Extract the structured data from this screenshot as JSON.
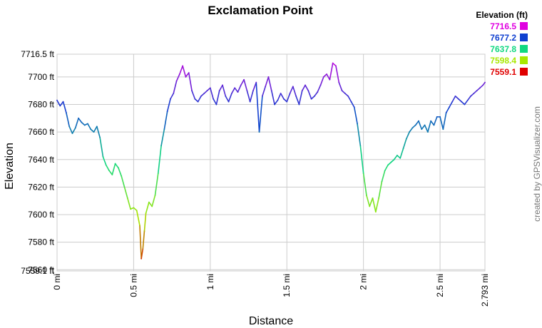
{
  "chart_data": {
    "type": "line",
    "title": "Exclamation Point",
    "xlabel": "Distance",
    "ylabel": "Elevation",
    "xlim": [
      0,
      2.793
    ],
    "ylim": [
      7559.1,
      7716.5
    ],
    "x_ticks": [
      "0 mi",
      "0.5 mi",
      "1 mi",
      "1.5 mi",
      "2 mi",
      "2.5 mi",
      "2.793 mi"
    ],
    "x_tick_values": [
      0,
      0.5,
      1,
      1.5,
      2,
      2.5,
      2.793
    ],
    "y_ticks": [
      "7559.1 ft",
      "7560 ft",
      "7580 ft",
      "7600 ft",
      "7620 ft",
      "7640 ft",
      "7660 ft",
      "7680 ft",
      "7700 ft",
      "7716.5 ft"
    ],
    "y_tick_values": [
      7559.1,
      7560,
      7580,
      7600,
      7620,
      7640,
      7660,
      7680,
      7700,
      7716.5
    ],
    "grid": true,
    "legend": {
      "title": "Elevation (ft)",
      "placement": "top-right",
      "entries": [
        {
          "label": "7716.5",
          "color": "#e000e0"
        },
        {
          "label": "7677.2",
          "color": "#1040d0"
        },
        {
          "label": "7637.8",
          "color": "#10d880"
        },
        {
          "label": "7598.4",
          "color": "#a8e800"
        },
        {
          "label": "7559.1",
          "color": "#e00000"
        }
      ]
    },
    "color_scale": [
      "#e00000",
      "#a8e800",
      "#10d880",
      "#1040d0",
      "#e000e0"
    ],
    "series": [
      {
        "x": [
          0,
          0.02,
          0.04,
          0.06,
          0.08,
          0.1,
          0.12,
          0.14,
          0.16,
          0.18,
          0.2,
          0.22,
          0.24,
          0.26,
          0.28,
          0.3,
          0.32,
          0.34,
          0.36,
          0.38,
          0.4,
          0.42,
          0.44,
          0.46,
          0.48,
          0.5,
          0.52,
          0.54,
          0.55,
          0.56,
          0.57,
          0.58,
          0.6,
          0.62,
          0.64,
          0.66,
          0.68,
          0.7,
          0.72,
          0.74,
          0.76,
          0.78,
          0.8,
          0.82,
          0.84,
          0.86,
          0.88,
          0.9,
          0.92,
          0.94,
          0.96,
          0.98,
          1.0,
          1.02,
          1.04,
          1.06,
          1.08,
          1.1,
          1.12,
          1.14,
          1.16,
          1.18,
          1.2,
          1.22,
          1.24,
          1.26,
          1.28,
          1.3,
          1.32,
          1.34,
          1.36,
          1.38,
          1.4,
          1.42,
          1.44,
          1.46,
          1.48,
          1.5,
          1.52,
          1.54,
          1.56,
          1.58,
          1.6,
          1.62,
          1.64,
          1.66,
          1.68,
          1.7,
          1.72,
          1.74,
          1.76,
          1.78,
          1.8,
          1.82,
          1.84,
          1.86,
          1.88,
          1.9,
          1.92,
          1.94,
          1.96,
          1.98,
          2.0,
          2.02,
          2.04,
          2.06,
          2.08,
          2.1,
          2.12,
          2.14,
          2.16,
          2.18,
          2.2,
          2.22,
          2.24,
          2.26,
          2.28,
          2.3,
          2.32,
          2.34,
          2.36,
          2.38,
          2.4,
          2.42,
          2.44,
          2.46,
          2.48,
          2.5,
          2.52,
          2.54,
          2.56,
          2.58,
          2.6,
          2.62,
          2.64,
          2.66,
          2.68,
          2.7,
          2.72,
          2.74,
          2.76,
          2.78,
          2.793
        ],
        "y": [
          7683,
          7679,
          7682,
          7674,
          7664,
          7659,
          7663,
          7670,
          7667,
          7665,
          7666,
          7662,
          7660,
          7664,
          7656,
          7642,
          7636,
          7632,
          7629,
          7637,
          7634,
          7628,
          7620,
          7612,
          7604,
          7605,
          7603,
          7592,
          7568,
          7575,
          7588,
          7601,
          7609,
          7606,
          7614,
          7630,
          7650,
          7662,
          7675,
          7684,
          7688,
          7697,
          7702,
          7708,
          7700,
          7703,
          7690,
          7684,
          7682,
          7686,
          7688,
          7690,
          7692,
          7684,
          7680,
          7690,
          7694,
          7686,
          7682,
          7688,
          7692,
          7689,
          7694,
          7698,
          7690,
          7682,
          7690,
          7696,
          7660,
          7686,
          7693,
          7700,
          7690,
          7680,
          7683,
          7688,
          7684,
          7682,
          7688,
          7693,
          7686,
          7680,
          7690,
          7694,
          7690,
          7684,
          7686,
          7689,
          7694,
          7700,
          7702,
          7698,
          7710,
          7708,
          7696,
          7690,
          7688,
          7686,
          7682,
          7678,
          7666,
          7650,
          7630,
          7614,
          7606,
          7612,
          7602,
          7612,
          7624,
          7632,
          7636,
          7638,
          7640,
          7643,
          7641,
          7648,
          7655,
          7660,
          7663,
          7665,
          7668,
          7662,
          7665,
          7660,
          7668,
          7665,
          7671,
          7671,
          7662,
          7674,
          7678,
          7682,
          7686,
          7684,
          7682,
          7680,
          7683,
          7686,
          7688,
          7690,
          7692,
          7694,
          7696
        ]
      }
    ]
  },
  "credit": "created by GPSVisualizer.com"
}
